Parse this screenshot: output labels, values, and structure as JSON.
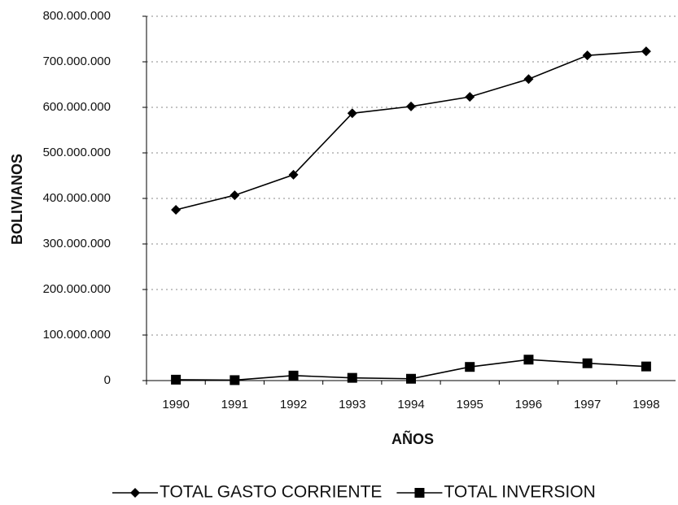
{
  "chart_data": {
    "type": "line",
    "x_label": "AÑOS",
    "y_label": "BOLIVIANOS",
    "categories": [
      "1990",
      "1991",
      "1992",
      "1993",
      "1994",
      "1995",
      "1996",
      "1997",
      "1998"
    ],
    "series": [
      {
        "name": "TOTAL GASTO CORRIENTE",
        "color": "#000000",
        "marker": "diamond",
        "values": [
          375000000,
          407000000,
          452000000,
          587000000,
          602000000,
          623000000,
          662000000,
          714000000,
          723000000
        ]
      },
      {
        "name": "TOTAL INVERSION",
        "color": "#000000",
        "marker": "square",
        "values": [
          2000000,
          1000000,
          11000000,
          6000000,
          4000000,
          30000000,
          46000000,
          38000000,
          31000000
        ]
      }
    ],
    "ylim": [
      0,
      800000000
    ],
    "yticks": [
      0,
      {
        "value": 100000000,
        "label": "100.000.000"
      },
      {
        "value": 200000000,
        "label": "200.000.000"
      },
      {
        "value": 300000000,
        "label": "300.000.000"
      },
      {
        "value": 400000000,
        "label": "400.000.000"
      },
      {
        "value": 500000000,
        "label": "500.000.000"
      },
      {
        "value": 600000000,
        "label": "600.000.000"
      },
      {
        "value": 700000000,
        "label": "700.000.000"
      },
      {
        "value": 800000000,
        "label": "800.000.000"
      }
    ],
    "grid": true,
    "legend": "bottom"
  }
}
